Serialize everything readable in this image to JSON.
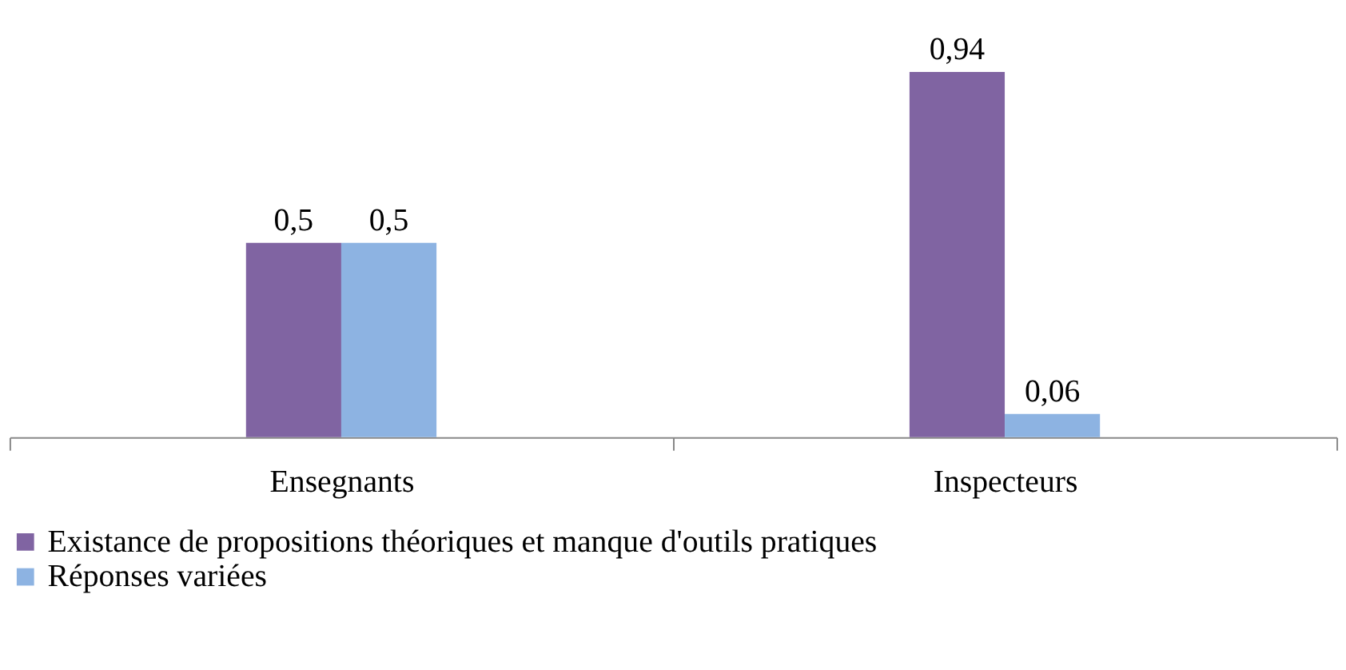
{
  "chart_data": {
    "type": "bar",
    "categories": [
      "Ensegnants",
      "Inspecteurs"
    ],
    "series": [
      {
        "name": "Existance de propositions théoriques et manque d'outils pratiques",
        "color": "#8064a2",
        "values": [
          0.5,
          0.94
        ],
        "value_labels": [
          "0,5",
          "0,94"
        ]
      },
      {
        "name": "Réponses variées",
        "color": "#8db3e2",
        "values": [
          0.5,
          0.06
        ],
        "value_labels": [
          "0,5",
          "0,06"
        ]
      }
    ],
    "legend": "bottom",
    "grid": false
  }
}
